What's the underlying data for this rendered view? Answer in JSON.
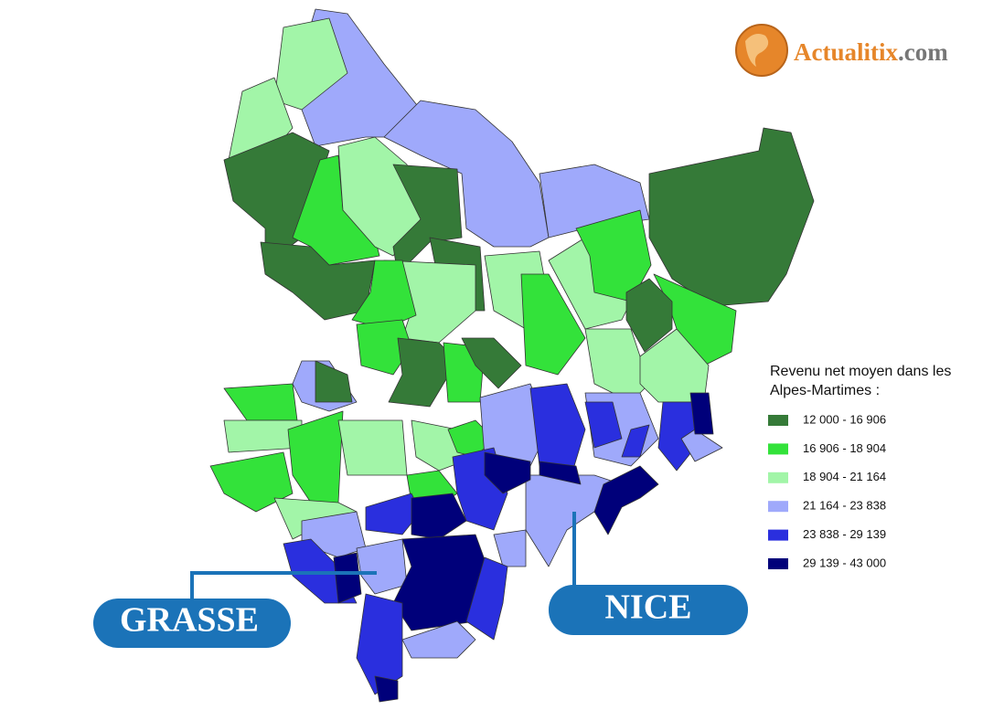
{
  "logo": {
    "name": "Actualitix",
    "suffix": ".com"
  },
  "legend": {
    "title": "Revenu net moyen dans les Alpes-Martimes :",
    "items": [
      {
        "label": "12 000 - 16 906",
        "color": "#357a38"
      },
      {
        "label": "16 906 - 18 904",
        "color": "#33e23a"
      },
      {
        "label": "18 904 - 21 164",
        "color": "#a2f5a8"
      },
      {
        "label": "21 164 - 23 838",
        "color": "#9fa9fb"
      },
      {
        "label": "23 838 - 29 139",
        "color": "#2a2fde"
      },
      {
        "label": "29 139 - 43 000",
        "color": "#00007a"
      }
    ]
  },
  "cities": {
    "grasse": "GRASSE",
    "nice": "NICE"
  }
}
